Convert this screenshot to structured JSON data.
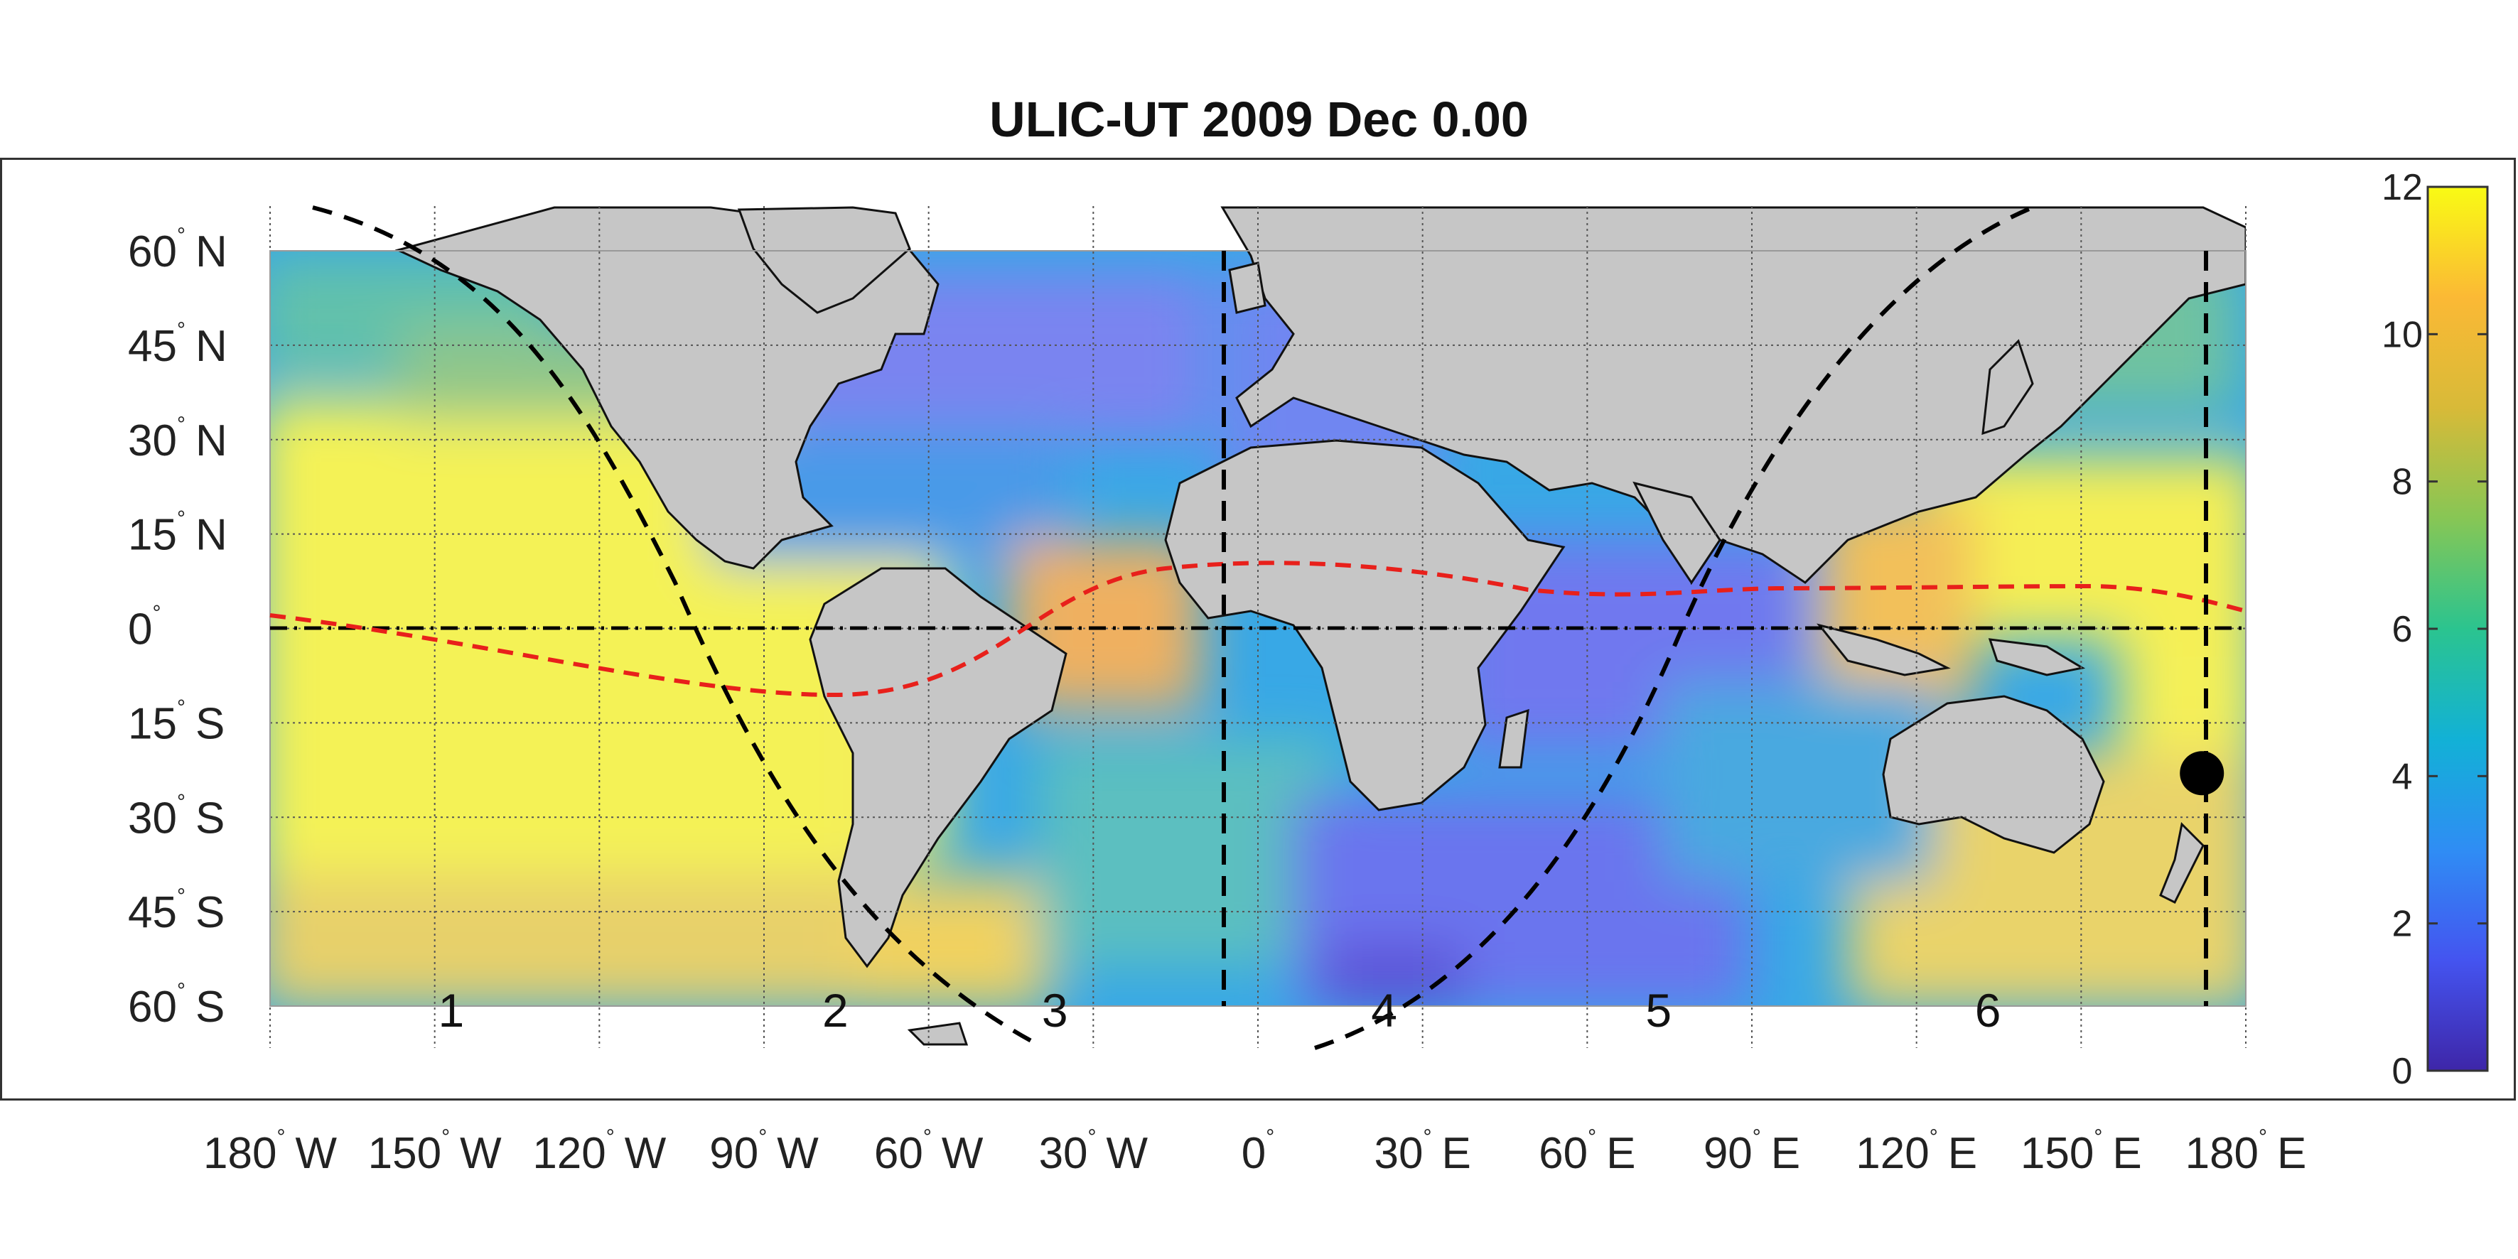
{
  "title": "ULIC-UT 2009 Dec  0.00",
  "lat_labels": [
    {
      "deg": "60",
      "hemi": "N",
      "value": 60
    },
    {
      "deg": "45",
      "hemi": "N",
      "value": 45
    },
    {
      "deg": "30",
      "hemi": "N",
      "value": 30
    },
    {
      "deg": "15",
      "hemi": "N",
      "value": 15
    },
    {
      "deg": "0",
      "hemi": "",
      "value": 0
    },
    {
      "deg": "15",
      "hemi": "S",
      "value": -15
    },
    {
      "deg": "30",
      "hemi": "S",
      "value": -30
    },
    {
      "deg": "45",
      "hemi": "S",
      "value": -45
    },
    {
      "deg": "60",
      "hemi": "S",
      "value": -60
    }
  ],
  "lon_labels": [
    {
      "deg": "180",
      "hemi": "W",
      "value": -180
    },
    {
      "deg": "150",
      "hemi": "W",
      "value": -150
    },
    {
      "deg": "120",
      "hemi": "W",
      "value": -120
    },
    {
      "deg": "90",
      "hemi": "W",
      "value": -90
    },
    {
      "deg": "60",
      "hemi": "W",
      "value": -60
    },
    {
      "deg": "30",
      "hemi": "W",
      "value": -30
    },
    {
      "deg": "0",
      "hemi": "",
      "value": 0
    },
    {
      "deg": "30",
      "hemi": "E",
      "value": 30
    },
    {
      "deg": "60",
      "hemi": "E",
      "value": 60
    },
    {
      "deg": "90",
      "hemi": "E",
      "value": 90
    },
    {
      "deg": "120",
      "hemi": "E",
      "value": 120
    },
    {
      "deg": "150",
      "hemi": "E",
      "value": 150
    },
    {
      "deg": "180",
      "hemi": "E",
      "value": 180
    }
  ],
  "regions": [
    {
      "label": "1",
      "lon": -147
    },
    {
      "label": "2",
      "lon": -77
    },
    {
      "label": "3",
      "lon": -37
    },
    {
      "label": "4",
      "lon": 23
    },
    {
      "label": "5",
      "lon": 73
    },
    {
      "label": "6",
      "lon": 133
    }
  ],
  "local_time_marker": {
    "lon": 172,
    "lat": -23
  },
  "colorbar": {
    "min": 0,
    "max": 12,
    "ticks": [
      "0",
      "2",
      "4",
      "6",
      "8",
      "10",
      "12"
    ],
    "colors": [
      "#3e26a8",
      "#4454f0",
      "#2f8df4",
      "#12b1d6",
      "#2bc48f",
      "#87c655",
      "#d8ba38",
      "#fbb935",
      "#f9fb14"
    ]
  },
  "colors": {
    "land": "#c6c6c6",
    "coastline": "#111111",
    "terminator": "#000000",
    "magnetic_equator": "#e8201b",
    "grid": "#555555"
  }
}
